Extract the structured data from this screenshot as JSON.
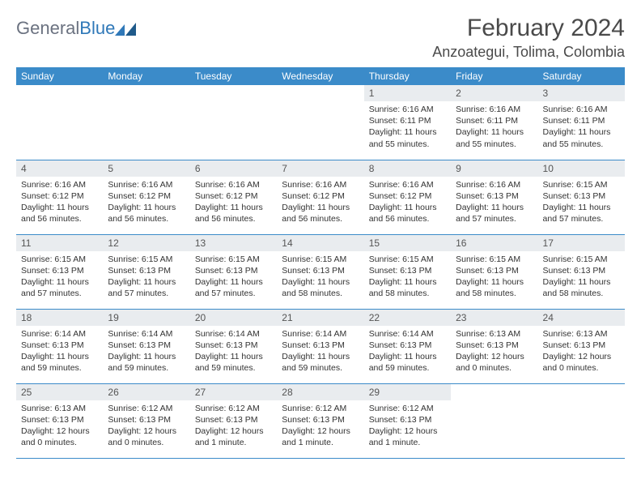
{
  "logo": {
    "general": "General",
    "blue": "Blue"
  },
  "title": "February 2024",
  "location": "Anzoategui, Tolima, Colombia",
  "colors": {
    "header_bg": "#3b8bc9",
    "header_text": "#ffffff",
    "daynum_bg": "#e9ecef",
    "border": "#3b8bc9",
    "logo_gray": "#6b7280",
    "logo_blue": "#2f78b8"
  },
  "weekdays": [
    "Sunday",
    "Monday",
    "Tuesday",
    "Wednesday",
    "Thursday",
    "Friday",
    "Saturday"
  ],
  "weeks": [
    [
      null,
      null,
      null,
      null,
      {
        "n": "1",
        "sr": "6:16 AM",
        "ss": "6:11 PM",
        "dl": "11 hours and 55 minutes."
      },
      {
        "n": "2",
        "sr": "6:16 AM",
        "ss": "6:11 PM",
        "dl": "11 hours and 55 minutes."
      },
      {
        "n": "3",
        "sr": "6:16 AM",
        "ss": "6:11 PM",
        "dl": "11 hours and 55 minutes."
      }
    ],
    [
      {
        "n": "4",
        "sr": "6:16 AM",
        "ss": "6:12 PM",
        "dl": "11 hours and 56 minutes."
      },
      {
        "n": "5",
        "sr": "6:16 AM",
        "ss": "6:12 PM",
        "dl": "11 hours and 56 minutes."
      },
      {
        "n": "6",
        "sr": "6:16 AM",
        "ss": "6:12 PM",
        "dl": "11 hours and 56 minutes."
      },
      {
        "n": "7",
        "sr": "6:16 AM",
        "ss": "6:12 PM",
        "dl": "11 hours and 56 minutes."
      },
      {
        "n": "8",
        "sr": "6:16 AM",
        "ss": "6:12 PM",
        "dl": "11 hours and 56 minutes."
      },
      {
        "n": "9",
        "sr": "6:16 AM",
        "ss": "6:13 PM",
        "dl": "11 hours and 57 minutes."
      },
      {
        "n": "10",
        "sr": "6:15 AM",
        "ss": "6:13 PM",
        "dl": "11 hours and 57 minutes."
      }
    ],
    [
      {
        "n": "11",
        "sr": "6:15 AM",
        "ss": "6:13 PM",
        "dl": "11 hours and 57 minutes."
      },
      {
        "n": "12",
        "sr": "6:15 AM",
        "ss": "6:13 PM",
        "dl": "11 hours and 57 minutes."
      },
      {
        "n": "13",
        "sr": "6:15 AM",
        "ss": "6:13 PM",
        "dl": "11 hours and 57 minutes."
      },
      {
        "n": "14",
        "sr": "6:15 AM",
        "ss": "6:13 PM",
        "dl": "11 hours and 58 minutes."
      },
      {
        "n": "15",
        "sr": "6:15 AM",
        "ss": "6:13 PM",
        "dl": "11 hours and 58 minutes."
      },
      {
        "n": "16",
        "sr": "6:15 AM",
        "ss": "6:13 PM",
        "dl": "11 hours and 58 minutes."
      },
      {
        "n": "17",
        "sr": "6:15 AM",
        "ss": "6:13 PM",
        "dl": "11 hours and 58 minutes."
      }
    ],
    [
      {
        "n": "18",
        "sr": "6:14 AM",
        "ss": "6:13 PM",
        "dl": "11 hours and 59 minutes."
      },
      {
        "n": "19",
        "sr": "6:14 AM",
        "ss": "6:13 PM",
        "dl": "11 hours and 59 minutes."
      },
      {
        "n": "20",
        "sr": "6:14 AM",
        "ss": "6:13 PM",
        "dl": "11 hours and 59 minutes."
      },
      {
        "n": "21",
        "sr": "6:14 AM",
        "ss": "6:13 PM",
        "dl": "11 hours and 59 minutes."
      },
      {
        "n": "22",
        "sr": "6:14 AM",
        "ss": "6:13 PM",
        "dl": "11 hours and 59 minutes."
      },
      {
        "n": "23",
        "sr": "6:13 AM",
        "ss": "6:13 PM",
        "dl": "12 hours and 0 minutes."
      },
      {
        "n": "24",
        "sr": "6:13 AM",
        "ss": "6:13 PM",
        "dl": "12 hours and 0 minutes."
      }
    ],
    [
      {
        "n": "25",
        "sr": "6:13 AM",
        "ss": "6:13 PM",
        "dl": "12 hours and 0 minutes."
      },
      {
        "n": "26",
        "sr": "6:12 AM",
        "ss": "6:13 PM",
        "dl": "12 hours and 0 minutes."
      },
      {
        "n": "27",
        "sr": "6:12 AM",
        "ss": "6:13 PM",
        "dl": "12 hours and 1 minute."
      },
      {
        "n": "28",
        "sr": "6:12 AM",
        "ss": "6:13 PM",
        "dl": "12 hours and 1 minute."
      },
      {
        "n": "29",
        "sr": "6:12 AM",
        "ss": "6:13 PM",
        "dl": "12 hours and 1 minute."
      },
      null,
      null
    ]
  ],
  "labels": {
    "sunrise": "Sunrise: ",
    "sunset": "Sunset: ",
    "daylight": "Daylight: "
  }
}
